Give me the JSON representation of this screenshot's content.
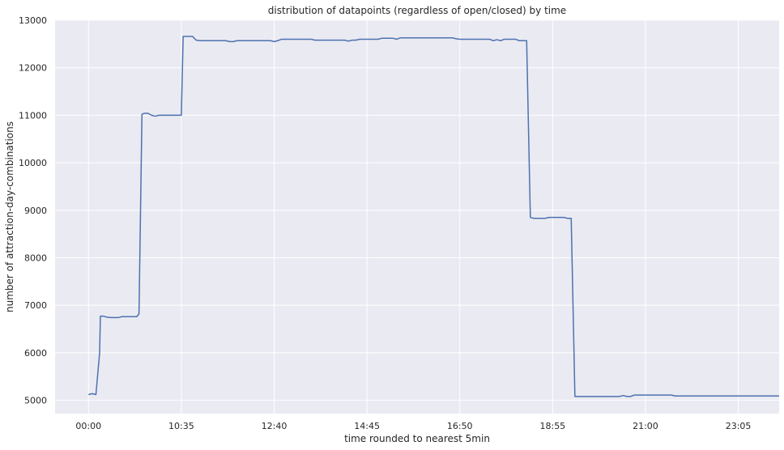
{
  "chart_data": {
    "type": "line",
    "title": "distribution of datapoints (regardless of open/closed) by time",
    "xlabel": "time rounded to nearest 5min",
    "ylabel": "number of attraction-day-combinations",
    "x_tick_labels": [
      "00:00",
      "10:35",
      "12:40",
      "14:45",
      "16:50",
      "18:55",
      "21:00",
      "23:05"
    ],
    "x_tick_index": [
      0,
      25,
      50,
      75,
      100,
      125,
      150,
      175
    ],
    "x_index_range": [
      -9,
      186
    ],
    "ylim": [
      4720,
      13000
    ],
    "y_ticks": [
      5000,
      6000,
      7000,
      8000,
      9000,
      10000,
      11000,
      12000,
      13000
    ],
    "grid": true,
    "legend": "none",
    "series": [
      {
        "color": "#4c72b0",
        "points": [
          [
            0,
            5120
          ],
          [
            1,
            5140
          ],
          [
            2,
            5120
          ],
          [
            3,
            6000
          ],
          [
            3.2,
            6770
          ],
          [
            4,
            6770
          ],
          [
            5,
            6750
          ],
          [
            6,
            6740
          ],
          [
            7,
            6740
          ],
          [
            8,
            6740
          ],
          [
            9,
            6760
          ],
          [
            10,
            6760
          ],
          [
            11,
            6760
          ],
          [
            12,
            6760
          ],
          [
            13,
            6760
          ],
          [
            13.6,
            6820
          ],
          [
            14.4,
            11020
          ],
          [
            15,
            11040
          ],
          [
            16,
            11040
          ],
          [
            17,
            11000
          ],
          [
            18,
            10980
          ],
          [
            19,
            11000
          ],
          [
            20,
            11000
          ],
          [
            21,
            11000
          ],
          [
            22,
            11000
          ],
          [
            23,
            11000
          ],
          [
            24,
            11000
          ],
          [
            25,
            11000
          ],
          [
            25.5,
            12660
          ],
          [
            26,
            12660
          ],
          [
            27,
            12660
          ],
          [
            28,
            12660
          ],
          [
            29,
            12580
          ],
          [
            30,
            12570
          ],
          [
            31,
            12570
          ],
          [
            32,
            12570
          ],
          [
            33,
            12570
          ],
          [
            34,
            12570
          ],
          [
            35,
            12570
          ],
          [
            36,
            12570
          ],
          [
            37,
            12570
          ],
          [
            38,
            12550
          ],
          [
            39,
            12550
          ],
          [
            40,
            12570
          ],
          [
            41,
            12570
          ],
          [
            42,
            12570
          ],
          [
            43,
            12570
          ],
          [
            44,
            12570
          ],
          [
            45,
            12570
          ],
          [
            46,
            12570
          ],
          [
            47,
            12570
          ],
          [
            48,
            12570
          ],
          [
            49,
            12570
          ],
          [
            50,
            12550
          ],
          [
            51,
            12570
          ],
          [
            52,
            12600
          ],
          [
            53,
            12600
          ],
          [
            54,
            12600
          ],
          [
            55,
            12600
          ],
          [
            56,
            12600
          ],
          [
            57,
            12600
          ],
          [
            58,
            12600
          ],
          [
            59,
            12600
          ],
          [
            60,
            12600
          ],
          [
            61,
            12580
          ],
          [
            62,
            12580
          ],
          [
            63,
            12580
          ],
          [
            64,
            12580
          ],
          [
            65,
            12580
          ],
          [
            66,
            12580
          ],
          [
            67,
            12580
          ],
          [
            68,
            12580
          ],
          [
            69,
            12580
          ],
          [
            70,
            12560
          ],
          [
            71,
            12580
          ],
          [
            72,
            12580
          ],
          [
            73,
            12600
          ],
          [
            74,
            12600
          ],
          [
            75,
            12600
          ],
          [
            76,
            12600
          ],
          [
            77,
            12600
          ],
          [
            78,
            12600
          ],
          [
            79,
            12620
          ],
          [
            80,
            12620
          ],
          [
            81,
            12620
          ],
          [
            82,
            12620
          ],
          [
            83,
            12600
          ],
          [
            84,
            12630
          ],
          [
            85,
            12630
          ],
          [
            86,
            12630
          ],
          [
            87,
            12630
          ],
          [
            88,
            12630
          ],
          [
            89,
            12630
          ],
          [
            90,
            12630
          ],
          [
            91,
            12630
          ],
          [
            92,
            12630
          ],
          [
            93,
            12630
          ],
          [
            94,
            12630
          ],
          [
            95,
            12630
          ],
          [
            96,
            12630
          ],
          [
            97,
            12630
          ],
          [
            98,
            12630
          ],
          [
            99,
            12610
          ],
          [
            100,
            12600
          ],
          [
            101,
            12600
          ],
          [
            102,
            12600
          ],
          [
            103,
            12600
          ],
          [
            104,
            12600
          ],
          [
            105,
            12600
          ],
          [
            106,
            12600
          ],
          [
            107,
            12600
          ],
          [
            108,
            12600
          ],
          [
            109,
            12570
          ],
          [
            110,
            12590
          ],
          [
            111,
            12570
          ],
          [
            112,
            12600
          ],
          [
            113,
            12600
          ],
          [
            114,
            12600
          ],
          [
            115,
            12600
          ],
          [
            116,
            12570
          ],
          [
            117,
            12570
          ],
          [
            118,
            12570
          ],
          [
            119,
            8850
          ],
          [
            120,
            8830
          ],
          [
            121,
            8830
          ],
          [
            122,
            8830
          ],
          [
            123,
            8830
          ],
          [
            124,
            8850
          ],
          [
            125,
            8850
          ],
          [
            126,
            8850
          ],
          [
            127,
            8850
          ],
          [
            128,
            8850
          ],
          [
            129,
            8830
          ],
          [
            130,
            8830
          ],
          [
            131,
            5080
          ],
          [
            132,
            5080
          ],
          [
            133,
            5080
          ],
          [
            134,
            5080
          ],
          [
            135,
            5080
          ],
          [
            136,
            5080
          ],
          [
            137,
            5080
          ],
          [
            138,
            5080
          ],
          [
            139,
            5080
          ],
          [
            140,
            5080
          ],
          [
            141,
            5080
          ],
          [
            142,
            5080
          ],
          [
            143,
            5080
          ],
          [
            144,
            5100
          ],
          [
            145,
            5080
          ],
          [
            146,
            5080
          ],
          [
            147,
            5110
          ],
          [
            148,
            5110
          ],
          [
            149,
            5110
          ],
          [
            150,
            5110
          ],
          [
            151,
            5110
          ],
          [
            152,
            5110
          ],
          [
            153,
            5110
          ],
          [
            154,
            5110
          ],
          [
            155,
            5110
          ],
          [
            156,
            5110
          ],
          [
            157,
            5110
          ],
          [
            158,
            5090
          ],
          [
            159,
            5090
          ],
          [
            160,
            5090
          ],
          [
            161,
            5090
          ],
          [
            162,
            5090
          ],
          [
            163,
            5090
          ],
          [
            164,
            5090
          ],
          [
            165,
            5090
          ],
          [
            166,
            5090
          ],
          [
            167,
            5090
          ],
          [
            168,
            5090
          ],
          [
            169,
            5090
          ],
          [
            170,
            5090
          ],
          [
            171,
            5090
          ],
          [
            172,
            5090
          ],
          [
            173,
            5090
          ],
          [
            174,
            5090
          ],
          [
            175,
            5090
          ],
          [
            176,
            5090
          ],
          [
            177,
            5090
          ],
          [
            178,
            5090
          ],
          [
            179,
            5090
          ],
          [
            180,
            5090
          ],
          [
            181,
            5090
          ],
          [
            182,
            5090
          ],
          [
            183,
            5090
          ],
          [
            184,
            5090
          ],
          [
            185,
            5090
          ],
          [
            186,
            5090
          ]
        ]
      }
    ]
  }
}
